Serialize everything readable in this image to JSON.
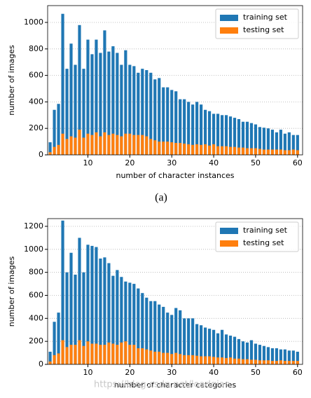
{
  "caption": "(a)",
  "watermark": "https://blog.csdn.net/loadqian",
  "chart_data": [
    {
      "type": "bar",
      "xlabel": "number of character instances",
      "ylabel": "number of images",
      "grid": true,
      "legend": "upper right",
      "x": [
        1,
        2,
        3,
        4,
        5,
        6,
        7,
        8,
        9,
        10,
        11,
        12,
        13,
        14,
        15,
        16,
        17,
        18,
        19,
        20,
        21,
        22,
        23,
        24,
        25,
        26,
        27,
        28,
        29,
        30,
        31,
        32,
        33,
        34,
        35,
        36,
        37,
        38,
        39,
        40,
        41,
        42,
        43,
        44,
        45,
        46,
        47,
        48,
        49,
        50,
        51,
        52,
        53,
        54,
        55,
        56,
        57,
        58,
        59,
        60
      ],
      "series": [
        {
          "name": "training set",
          "color": "#1f77b4",
          "values": [
            95,
            340,
            385,
            1065,
            650,
            840,
            680,
            980,
            650,
            870,
            760,
            870,
            770,
            940,
            780,
            820,
            770,
            680,
            790,
            680,
            670,
            620,
            650,
            640,
            620,
            570,
            580,
            510,
            510,
            490,
            480,
            420,
            420,
            400,
            380,
            400,
            380,
            340,
            330,
            310,
            310,
            300,
            300,
            290,
            280,
            270,
            250,
            250,
            240,
            230,
            210,
            205,
            200,
            190,
            170,
            190,
            160,
            170,
            150,
            150
          ]
        },
        {
          "name": "testing set",
          "color": "#ff7f0e",
          "values": [
            20,
            60,
            75,
            160,
            120,
            140,
            130,
            190,
            130,
            160,
            150,
            170,
            140,
            170,
            150,
            160,
            150,
            140,
            160,
            160,
            150,
            150,
            150,
            140,
            120,
            110,
            100,
            100,
            100,
            95,
            90,
            90,
            85,
            80,
            75,
            80,
            75,
            80,
            70,
            80,
            65,
            65,
            65,
            60,
            60,
            55,
            55,
            50,
            50,
            50,
            45,
            40,
            40,
            40,
            40,
            40,
            35,
            35,
            40,
            35
          ]
        }
      ],
      "xlim": [
        0.4,
        61.2
      ],
      "xticks": [
        10,
        20,
        30,
        40,
        50,
        60
      ],
      "ylim": [
        0,
        1127
      ],
      "yticks": [
        0,
        200,
        400,
        600,
        800,
        1000
      ]
    },
    {
      "type": "bar",
      "xlabel": "number of character categories",
      "ylabel": "number of images",
      "grid": true,
      "legend": "upper right",
      "x": [
        1,
        2,
        3,
        4,
        5,
        6,
        7,
        8,
        9,
        10,
        11,
        12,
        13,
        14,
        15,
        16,
        17,
        18,
        19,
        20,
        21,
        22,
        23,
        24,
        25,
        26,
        27,
        28,
        29,
        30,
        31,
        32,
        33,
        34,
        35,
        36,
        37,
        38,
        39,
        40,
        41,
        42,
        43,
        44,
        45,
        46,
        47,
        48,
        49,
        50,
        51,
        52,
        53,
        54,
        55,
        56,
        57,
        58,
        59,
        60
      ],
      "series": [
        {
          "name": "training set",
          "color": "#1f77b4",
          "values": [
            110,
            370,
            450,
            1250,
            800,
            970,
            780,
            1100,
            800,
            1040,
            1030,
            1020,
            920,
            930,
            880,
            770,
            820,
            760,
            720,
            710,
            700,
            660,
            620,
            580,
            550,
            550,
            520,
            500,
            450,
            430,
            490,
            470,
            400,
            400,
            400,
            350,
            340,
            320,
            310,
            300,
            270,
            300,
            260,
            250,
            240,
            220,
            200,
            190,
            210,
            180,
            170,
            160,
            150,
            140,
            140,
            130,
            130,
            120,
            120,
            110
          ]
        },
        {
          "name": "testing set",
          "color": "#ff7f0e",
          "values": [
            25,
            80,
            95,
            210,
            150,
            170,
            170,
            210,
            160,
            200,
            180,
            180,
            170,
            170,
            190,
            180,
            170,
            190,
            200,
            170,
            170,
            140,
            140,
            130,
            120,
            110,
            110,
            100,
            100,
            90,
            100,
            90,
            80,
            80,
            80,
            75,
            70,
            70,
            70,
            65,
            60,
            60,
            55,
            60,
            50,
            50,
            45,
            45,
            40,
            40,
            35,
            35,
            35,
            30,
            30,
            35,
            30,
            30,
            30,
            30
          ]
        }
      ],
      "xlim": [
        0.4,
        61.2
      ],
      "xticks": [
        10,
        20,
        30,
        40,
        50,
        60
      ],
      "ylim": [
        0,
        1267
      ],
      "yticks": [
        0,
        200,
        400,
        600,
        800,
        1000,
        1200
      ]
    }
  ]
}
